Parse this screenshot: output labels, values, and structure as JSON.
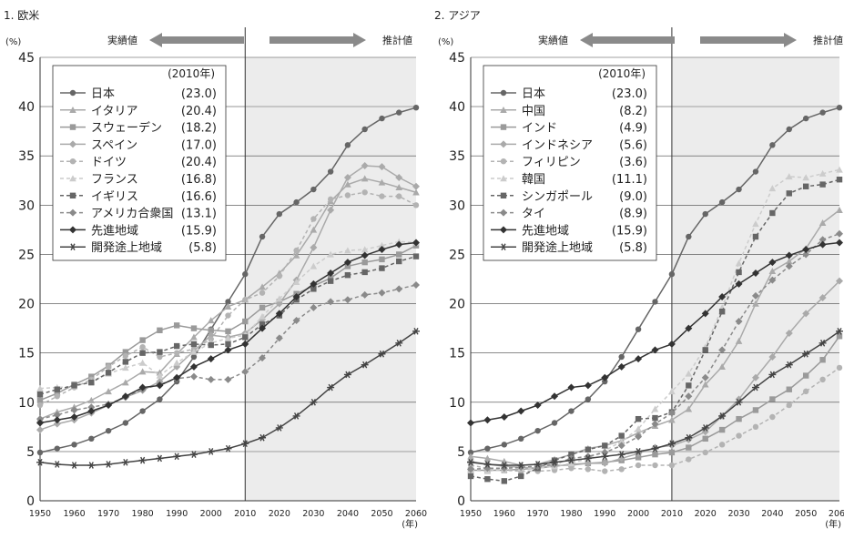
{
  "chart_data": [
    {
      "type": "line",
      "title": "1. 欧米",
      "ylabel": "(%)",
      "xlabel": "(年)",
      "ylim": [
        0,
        45
      ],
      "xlim": [
        1950,
        2060
      ],
      "yticks": [
        0,
        5,
        10,
        15,
        20,
        25,
        30,
        35,
        40,
        45
      ],
      "xticks": [
        1950,
        1960,
        1970,
        1980,
        1990,
        2000,
        2010,
        2020,
        2030,
        2040,
        2050,
        2060
      ],
      "actual_label": "実績値",
      "projected_label": "推計値",
      "divider_year": 2010,
      "legend_title": "(2010年)",
      "x": [
        1950,
        1955,
        1960,
        1965,
        1970,
        1975,
        1980,
        1985,
        1990,
        1995,
        2000,
        2005,
        2010,
        2015,
        2020,
        2025,
        2030,
        2035,
        2040,
        2045,
        2050,
        2055,
        2060
      ],
      "series": [
        {
          "name": "日本",
          "value2010": "(23.0)",
          "color": "#666666",
          "dash": false,
          "marker": "circle",
          "values": [
            4.9,
            5.3,
            5.7,
            6.3,
            7.1,
            7.9,
            9.1,
            10.3,
            12.1,
            14.6,
            17.4,
            20.2,
            23.0,
            26.8,
            29.1,
            30.3,
            31.6,
            33.4,
            36.1,
            37.7,
            38.8,
            39.4,
            39.9
          ]
        },
        {
          "name": "イタリア",
          "value2010": "(20.4)",
          "color": "#aaaaaa",
          "dash": false,
          "marker": "triangle",
          "values": [
            8.3,
            9.0,
            9.5,
            10.2,
            11.1,
            12.0,
            13.1,
            13.0,
            14.9,
            16.6,
            18.3,
            19.7,
            20.4,
            21.7,
            23.1,
            24.9,
            27.5,
            30.4,
            32.1,
            32.7,
            32.3,
            31.8,
            31.3
          ]
        },
        {
          "name": "スウェーデン",
          "value2010": "(18.2)",
          "color": "#9a9a9a",
          "dash": false,
          "marker": "square",
          "values": [
            10.2,
            10.9,
            11.8,
            12.6,
            13.7,
            15.1,
            16.3,
            17.3,
            17.8,
            17.5,
            17.3,
            17.2,
            18.2,
            19.6,
            20.2,
            21.0,
            21.8,
            22.6,
            23.8,
            24.2,
            24.5,
            25.0,
            25.9
          ]
        },
        {
          "name": "スペイン",
          "value2010": "(17.0)",
          "color": "#aaaaaa",
          "dash": false,
          "marker": "diamond",
          "values": [
            7.2,
            7.8,
            8.2,
            8.9,
            9.7,
            10.5,
            11.2,
            12.1,
            13.6,
            15.2,
            16.8,
            16.6,
            17.0,
            18.4,
            20.0,
            22.4,
            25.7,
            29.5,
            32.8,
            34.0,
            33.9,
            32.8,
            31.9
          ]
        },
        {
          "name": "ドイツ",
          "value2010": "(20.4)",
          "color": "#b3b3b3",
          "dash": true,
          "marker": "circle",
          "values": [
            9.7,
            10.6,
            11.5,
            12.3,
            13.6,
            14.7,
            15.6,
            14.6,
            15.0,
            15.4,
            16.4,
            18.8,
            20.4,
            21.1,
            22.8,
            25.4,
            28.6,
            30.6,
            31.0,
            31.3,
            30.9,
            30.9,
            30.0
          ]
        },
        {
          "name": "フランス",
          "value2010": "(16.8)",
          "color": "#cccccc",
          "dash": true,
          "marker": "triangle",
          "values": [
            11.4,
            11.5,
            11.6,
            12.1,
            12.9,
            13.5,
            14.0,
            12.7,
            14.0,
            15.1,
            16.0,
            16.5,
            16.8,
            18.7,
            20.5,
            22.2,
            23.8,
            25.0,
            25.4,
            25.5,
            25.9,
            26.3,
            26.2
          ]
        },
        {
          "name": "イギリス",
          "value2010": "(16.6)",
          "color": "#666666",
          "dash": true,
          "marker": "square",
          "values": [
            10.8,
            11.3,
            11.7,
            12.0,
            13.0,
            14.1,
            15.0,
            15.1,
            15.7,
            15.9,
            15.8,
            15.9,
            16.6,
            17.9,
            18.8,
            20.4,
            21.5,
            22.3,
            22.9,
            23.2,
            23.6,
            24.3,
            24.8
          ]
        },
        {
          "name": "アメリカ合衆国",
          "value2010": "(13.1)",
          "color": "#8a8a8a",
          "dash": true,
          "marker": "diamond",
          "values": [
            8.3,
            8.7,
            9.2,
            9.5,
            9.8,
            10.5,
            11.3,
            11.8,
            12.4,
            12.6,
            12.3,
            12.3,
            13.1,
            14.5,
            16.5,
            18.3,
            19.6,
            20.2,
            20.4,
            20.9,
            21.1,
            21.5,
            21.9
          ]
        },
        {
          "name": "先進地域",
          "value2010": "(15.9)",
          "color": "#333333",
          "dash": false,
          "marker": "diamond",
          "values": [
            7.9,
            8.2,
            8.5,
            9.1,
            9.7,
            10.6,
            11.5,
            11.7,
            12.5,
            13.6,
            14.4,
            15.3,
            15.9,
            17.5,
            19.0,
            20.7,
            22.0,
            23.1,
            24.2,
            24.9,
            25.5,
            26.0,
            26.2
          ]
        },
        {
          "name": "開発途上地域",
          "value2010": "(5.8)",
          "color": "#444444",
          "dash": false,
          "marker": "star",
          "values": [
            3.9,
            3.7,
            3.6,
            3.6,
            3.7,
            3.9,
            4.1,
            4.3,
            4.5,
            4.7,
            5.0,
            5.3,
            5.8,
            6.4,
            7.4,
            8.6,
            10.0,
            11.5,
            12.8,
            13.8,
            14.9,
            16.0,
            17.2
          ]
        }
      ]
    },
    {
      "type": "line",
      "title": "2. アジア",
      "ylabel": "(%)",
      "xlabel": "(年)",
      "ylim": [
        0,
        45
      ],
      "xlim": [
        1950,
        2060
      ],
      "yticks": [
        0,
        5,
        10,
        15,
        20,
        25,
        30,
        35,
        40,
        45
      ],
      "xticks": [
        1950,
        1960,
        1970,
        1980,
        1990,
        2000,
        2010,
        2020,
        2030,
        2040,
        2050,
        2060
      ],
      "actual_label": "実績値",
      "projected_label": "推計値",
      "divider_year": 2010,
      "legend_title": "(2010年)",
      "x": [
        1950,
        1955,
        1960,
        1965,
        1970,
        1975,
        1980,
        1985,
        1990,
        1995,
        2000,
        2005,
        2010,
        2015,
        2020,
        2025,
        2030,
        2035,
        2040,
        2045,
        2050,
        2055,
        2060
      ],
      "series": [
        {
          "name": "日本",
          "value2010": "(23.0)",
          "color": "#666666",
          "dash": false,
          "marker": "circle",
          "values": [
            4.9,
            5.3,
            5.7,
            6.3,
            7.1,
            7.9,
            9.1,
            10.3,
            12.1,
            14.6,
            17.4,
            20.2,
            23.0,
            26.8,
            29.1,
            30.3,
            31.6,
            33.4,
            36.1,
            37.7,
            38.8,
            39.4,
            39.9
          ]
        },
        {
          "name": "中国",
          "value2010": "(8.2)",
          "color": "#aaaaaa",
          "dash": false,
          "marker": "triangle",
          "values": [
            4.5,
            4.3,
            4.0,
            3.6,
            3.7,
            4.2,
            4.7,
            5.3,
            5.6,
            6.1,
            6.9,
            7.6,
            8.2,
            9.3,
            11.8,
            13.6,
            16.2,
            20.0,
            23.3,
            24.3,
            25.6,
            28.2,
            29.5
          ]
        },
        {
          "name": "インド",
          "value2010": "(4.9)",
          "color": "#9a9a9a",
          "dash": false,
          "marker": "square",
          "values": [
            3.1,
            3.1,
            3.1,
            3.2,
            3.3,
            3.5,
            3.7,
            3.8,
            3.9,
            4.1,
            4.4,
            4.7,
            4.9,
            5.4,
            6.3,
            7.2,
            8.3,
            9.2,
            10.3,
            11.3,
            12.7,
            14.3,
            16.7
          ]
        },
        {
          "name": "インドネシア",
          "value2010": "(5.6)",
          "color": "#aaaaaa",
          "dash": false,
          "marker": "diamond",
          "values": [
            4.0,
            3.7,
            3.5,
            3.4,
            3.3,
            3.6,
            3.6,
            3.8,
            3.8,
            4.3,
            4.8,
            5.4,
            5.6,
            6.2,
            7.0,
            8.6,
            10.3,
            12.5,
            14.6,
            17.0,
            19.0,
            20.6,
            22.3
          ]
        },
        {
          "name": "フィリピン",
          "value2010": "(3.6)",
          "color": "#b3b3b3",
          "dash": true,
          "marker": "circle",
          "values": [
            3.6,
            3.3,
            3.1,
            3.0,
            3.0,
            3.1,
            3.3,
            3.2,
            3.0,
            3.2,
            3.6,
            3.6,
            3.6,
            4.2,
            4.9,
            5.7,
            6.6,
            7.5,
            8.5,
            9.7,
            11.1,
            12.3,
            13.5
          ]
        },
        {
          "name": "韓国",
          "value2010": "(11.1)",
          "color": "#cccccc",
          "dash": true,
          "marker": "triangle",
          "values": [
            3.1,
            3.0,
            3.2,
            3.3,
            3.3,
            3.5,
            3.8,
            4.3,
            5.1,
            6.0,
            7.3,
            9.3,
            11.1,
            12.9,
            15.6,
            19.6,
            24.1,
            28.1,
            31.7,
            32.9,
            32.8,
            33.2,
            33.6
          ]
        },
        {
          "name": "シンガポール",
          "value2010": "(9.0)",
          "color": "#666666",
          "dash": true,
          "marker": "square",
          "values": [
            2.5,
            2.2,
            2.0,
            2.5,
            3.3,
            4.1,
            4.7,
            5.2,
            5.6,
            6.6,
            8.3,
            8.4,
            9.0,
            11.7,
            15.3,
            19.2,
            23.2,
            26.8,
            29.2,
            31.2,
            31.9,
            32.1,
            32.6
          ]
        },
        {
          "name": "タイ",
          "value2010": "(8.9)",
          "color": "#8a8a8a",
          "dash": true,
          "marker": "diamond",
          "values": [
            3.2,
            3.3,
            3.3,
            3.4,
            3.5,
            3.7,
            4.3,
            4.5,
            4.9,
            5.6,
            6.5,
            7.8,
            8.9,
            10.6,
            12.5,
            15.3,
            18.2,
            20.8,
            22.4,
            23.8,
            25.0,
            26.5,
            27.1
          ]
        },
        {
          "name": "先進地域",
          "value2010": "(15.9)",
          "color": "#333333",
          "dash": false,
          "marker": "diamond",
          "values": [
            7.9,
            8.2,
            8.5,
            9.1,
            9.7,
            10.6,
            11.5,
            11.7,
            12.5,
            13.6,
            14.4,
            15.3,
            15.9,
            17.5,
            19.0,
            20.7,
            22.0,
            23.1,
            24.2,
            24.9,
            25.5,
            26.0,
            26.2
          ]
        },
        {
          "name": "開発途上地域",
          "value2010": "(5.8)",
          "color": "#444444",
          "dash": false,
          "marker": "star",
          "values": [
            3.9,
            3.7,
            3.6,
            3.6,
            3.7,
            3.9,
            4.1,
            4.3,
            4.5,
            4.7,
            5.0,
            5.3,
            5.8,
            6.4,
            7.4,
            8.6,
            10.0,
            11.5,
            12.8,
            13.8,
            14.9,
            16.0,
            17.2
          ]
        }
      ]
    }
  ]
}
